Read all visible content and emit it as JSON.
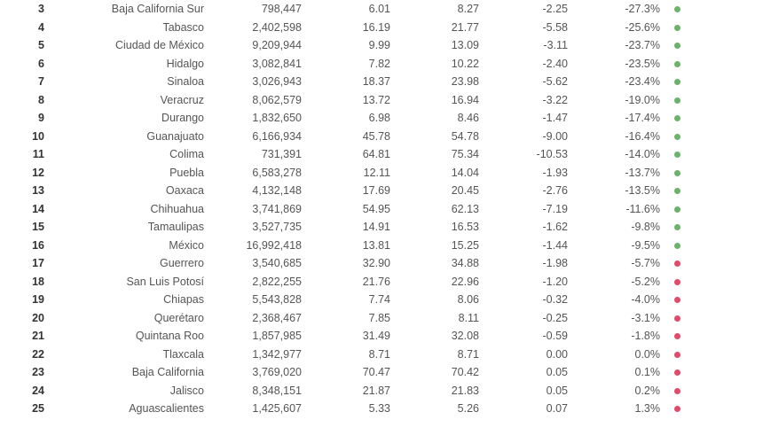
{
  "colors": {
    "green": "#6bb26b",
    "red": "#e04a6b"
  },
  "rows": [
    {
      "rank": "3",
      "name": "Baja California Sur",
      "pop": "798,447",
      "v1": "6.01",
      "v2": "8.27",
      "diff": "-2.25",
      "pct": "-27.3%",
      "dot": "green"
    },
    {
      "rank": "4",
      "name": "Tabasco",
      "pop": "2,402,598",
      "v1": "16.19",
      "v2": "21.77",
      "diff": "-5.58",
      "pct": "-25.6%",
      "dot": "green"
    },
    {
      "rank": "5",
      "name": "Ciudad de México",
      "pop": "9,209,944",
      "v1": "9.99",
      "v2": "13.09",
      "diff": "-3.11",
      "pct": "-23.7%",
      "dot": "green"
    },
    {
      "rank": "6",
      "name": "Hidalgo",
      "pop": "3,082,841",
      "v1": "7.82",
      "v2": "10.22",
      "diff": "-2.40",
      "pct": "-23.5%",
      "dot": "green"
    },
    {
      "rank": "7",
      "name": "Sinaloa",
      "pop": "3,026,943",
      "v1": "18.37",
      "v2": "23.98",
      "diff": "-5.62",
      "pct": "-23.4%",
      "dot": "green"
    },
    {
      "rank": "8",
      "name": "Veracruz",
      "pop": "8,062,579",
      "v1": "13.72",
      "v2": "16.94",
      "diff": "-3.22",
      "pct": "-19.0%",
      "dot": "green"
    },
    {
      "rank": "9",
      "name": "Durango",
      "pop": "1,832,650",
      "v1": "6.98",
      "v2": "8.46",
      "diff": "-1.47",
      "pct": "-17.4%",
      "dot": "green"
    },
    {
      "rank": "10",
      "name": "Guanajuato",
      "pop": "6,166,934",
      "v1": "45.78",
      "v2": "54.78",
      "diff": "-9.00",
      "pct": "-16.4%",
      "dot": "green"
    },
    {
      "rank": "11",
      "name": "Colima",
      "pop": "731,391",
      "v1": "64.81",
      "v2": "75.34",
      "diff": "-10.53",
      "pct": "-14.0%",
      "dot": "green"
    },
    {
      "rank": "12",
      "name": "Puebla",
      "pop": "6,583,278",
      "v1": "12.11",
      "v2": "14.04",
      "diff": "-1.93",
      "pct": "-13.7%",
      "dot": "green"
    },
    {
      "rank": "13",
      "name": "Oaxaca",
      "pop": "4,132,148",
      "v1": "17.69",
      "v2": "20.45",
      "diff": "-2.76",
      "pct": "-13.5%",
      "dot": "green"
    },
    {
      "rank": "14",
      "name": "Chihuahua",
      "pop": "3,741,869",
      "v1": "54.95",
      "v2": "62.13",
      "diff": "-7.19",
      "pct": "-11.6%",
      "dot": "green"
    },
    {
      "rank": "15",
      "name": "Tamaulipas",
      "pop": "3,527,735",
      "v1": "14.91",
      "v2": "16.53",
      "diff": "-1.62",
      "pct": "-9.8%",
      "dot": "green"
    },
    {
      "rank": "16",
      "name": "México",
      "pop": "16,992,418",
      "v1": "13.81",
      "v2": "15.25",
      "diff": "-1.44",
      "pct": "-9.5%",
      "dot": "green"
    },
    {
      "rank": "17",
      "name": "Guerrero",
      "pop": "3,540,685",
      "v1": "32.90",
      "v2": "34.88",
      "diff": "-1.98",
      "pct": "-5.7%",
      "dot": "red"
    },
    {
      "rank": "18",
      "name": "San Luis Potosí",
      "pop": "2,822,255",
      "v1": "21.76",
      "v2": "22.96",
      "diff": "-1.20",
      "pct": "-5.2%",
      "dot": "red"
    },
    {
      "rank": "19",
      "name": "Chiapas",
      "pop": "5,543,828",
      "v1": "7.74",
      "v2": "8.06",
      "diff": "-0.32",
      "pct": "-4.0%",
      "dot": "red"
    },
    {
      "rank": "20",
      "name": "Querétaro",
      "pop": "2,368,467",
      "v1": "7.85",
      "v2": "8.11",
      "diff": "-0.25",
      "pct": "-3.1%",
      "dot": "red"
    },
    {
      "rank": "21",
      "name": "Quintana Roo",
      "pop": "1,857,985",
      "v1": "31.49",
      "v2": "32.08",
      "diff": "-0.59",
      "pct": "-1.8%",
      "dot": "red"
    },
    {
      "rank": "22",
      "name": "Tlaxcala",
      "pop": "1,342,977",
      "v1": "8.71",
      "v2": "8.71",
      "diff": "0.00",
      "pct": "0.0%",
      "dot": "red"
    },
    {
      "rank": "23",
      "name": "Baja California",
      "pop": "3,769,020",
      "v1": "70.47",
      "v2": "70.42",
      "diff": "0.05",
      "pct": "0.1%",
      "dot": "red"
    },
    {
      "rank": "24",
      "name": "Jalisco",
      "pop": "8,348,151",
      "v1": "21.87",
      "v2": "21.83",
      "diff": "0.05",
      "pct": "0.2%",
      "dot": "red"
    },
    {
      "rank": "25",
      "name": "Aguascalientes",
      "pop": "1,425,607",
      "v1": "5.33",
      "v2": "5.26",
      "diff": "0.07",
      "pct": "1.3%",
      "dot": "red"
    }
  ]
}
